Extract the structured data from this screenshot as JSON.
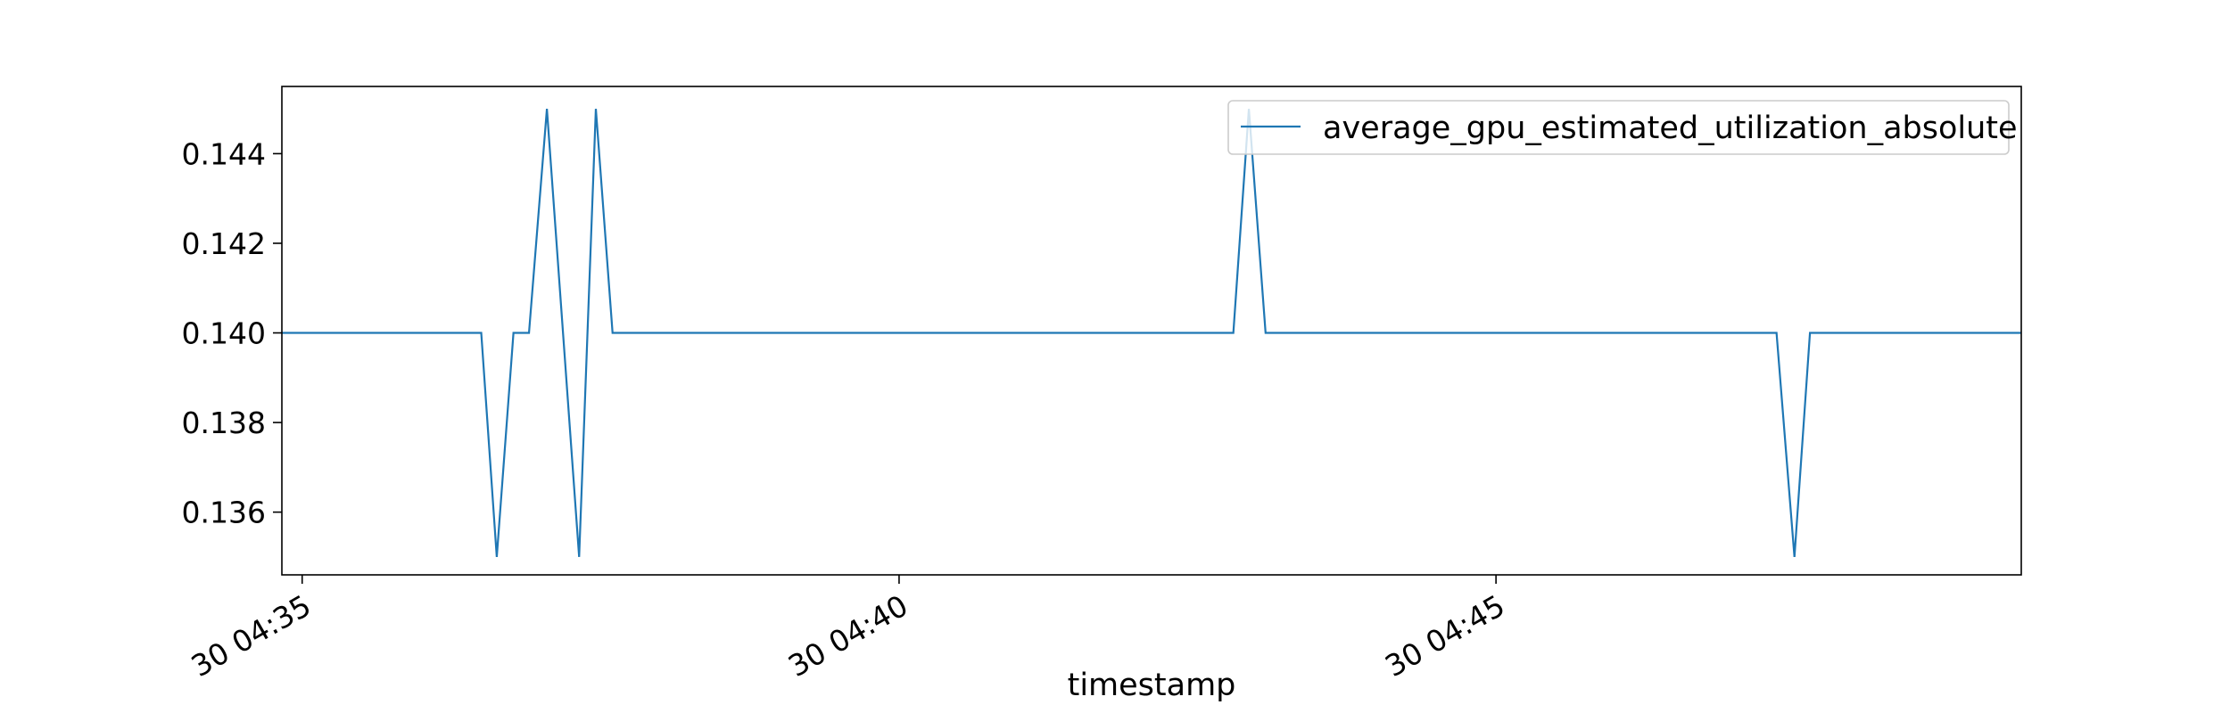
{
  "chart_data": {
    "type": "line",
    "title": "",
    "xlabel": "timestamp",
    "ylabel": "",
    "x_ticks": [
      {
        "x": 0.0,
        "label": "30 04:35"
      },
      {
        "x": 5.0,
        "label": "30 04:40"
      },
      {
        "x": 10.0,
        "label": "30 04:45"
      }
    ],
    "y_ticks": [
      {
        "y": 0.136,
        "label": "0.136"
      },
      {
        "y": 0.138,
        "label": "0.138"
      },
      {
        "y": 0.14,
        "label": "0.140"
      },
      {
        "y": 0.142,
        "label": "0.142"
      },
      {
        "y": 0.144,
        "label": "0.144"
      }
    ],
    "xlim": [
      -0.17,
      14.4
    ],
    "ylim": [
      0.1346,
      0.1455
    ],
    "grid": false,
    "legend_position": "top-right",
    "series": [
      {
        "name": "average_gpu_estimated_utilization_absolute",
        "color": "#1f77b4",
        "x": [
          -0.17,
          1.5,
          1.63,
          1.77,
          1.9,
          2.05,
          2.32,
          2.46,
          2.6,
          7.8,
          7.93,
          8.07,
          12.35,
          12.5,
          12.63,
          14.4
        ],
        "y": [
          0.14,
          0.14,
          0.135,
          0.14,
          0.14,
          0.145,
          0.135,
          0.145,
          0.14,
          0.14,
          0.145,
          0.14,
          0.14,
          0.135,
          0.14,
          0.14
        ]
      }
    ]
  }
}
